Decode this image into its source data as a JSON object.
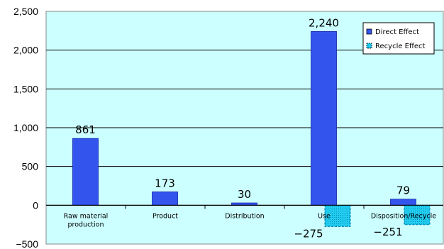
{
  "chart_data": {
    "type": "bar",
    "categories": [
      "Raw material\nproduction",
      "Product",
      "Distribution",
      "Use",
      "Disposition/Recycle"
    ],
    "series": [
      {
        "name": "Direct Effect",
        "values": [
          861,
          173,
          30,
          2240,
          79
        ],
        "labels": [
          "861",
          "173",
          "30",
          "2,240",
          "79"
        ],
        "color": "#3355ee"
      },
      {
        "name": "Recycle Effect",
        "values": [
          0,
          0,
          0,
          -275,
          -251
        ],
        "labels": [
          "",
          "",
          "",
          "−275",
          "−251"
        ],
        "color": "#22ccee"
      }
    ],
    "ylim": [
      -500,
      2500
    ],
    "yticks": [
      -500,
      0,
      500,
      1000,
      1500,
      2000,
      2500
    ],
    "ytick_labels": [
      "−500",
      "0",
      "500",
      "1,000",
      "1,500",
      "2,000",
      "2,500"
    ],
    "plot_background": "#ccffff",
    "grid": true,
    "legend": "top-right"
  }
}
